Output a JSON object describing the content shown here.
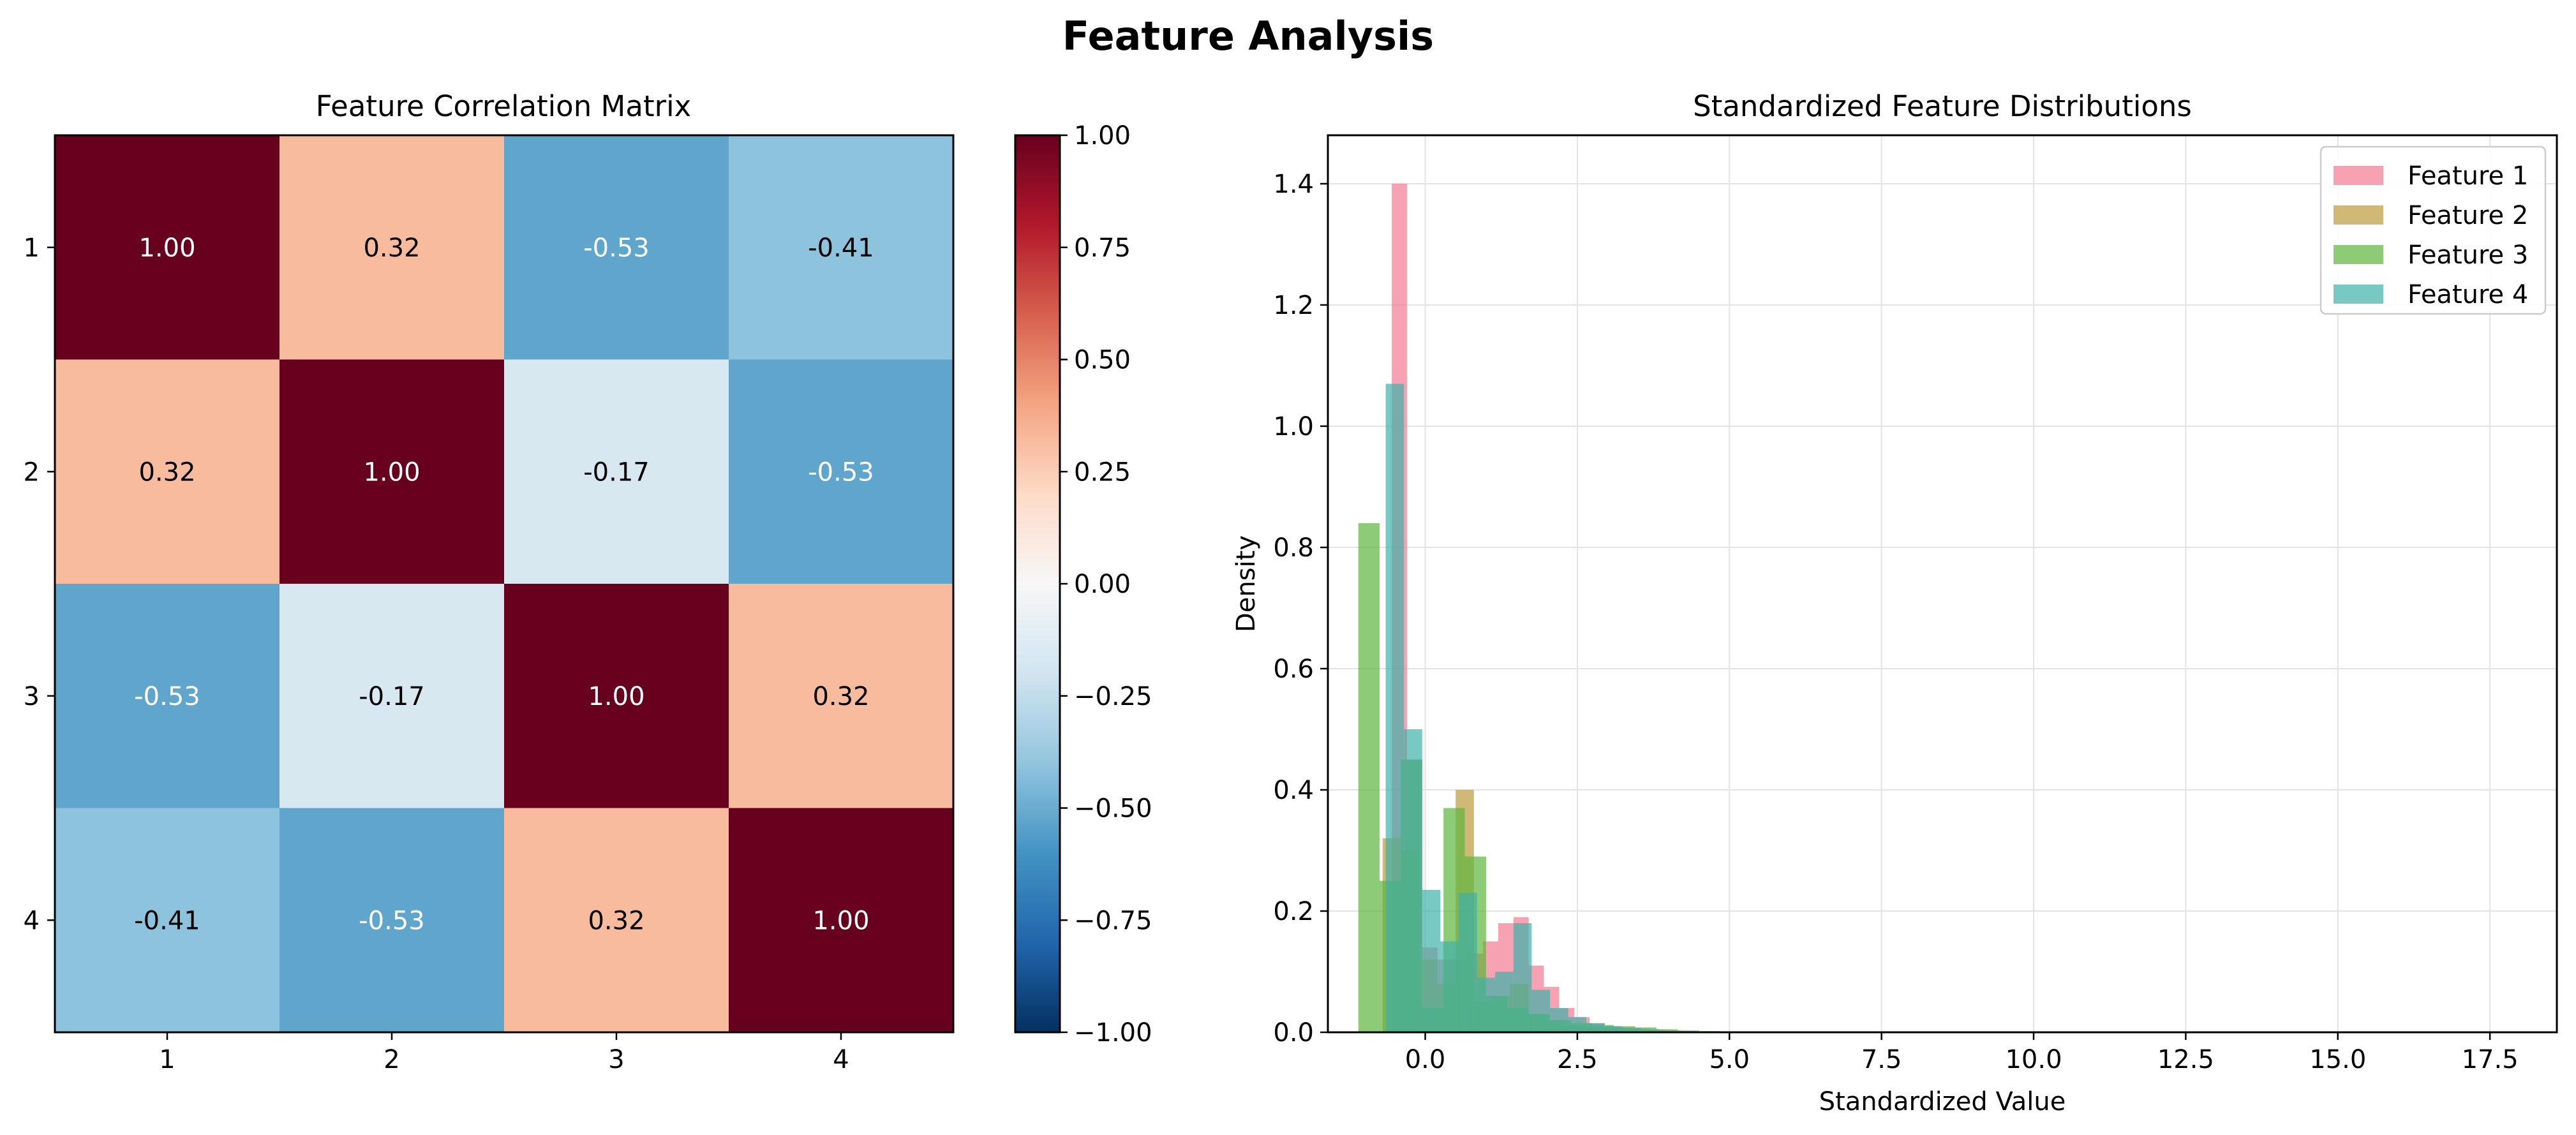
{
  "figure": {
    "title": "Feature Analysis"
  },
  "colors": {
    "feature_1": "#f37b91",
    "feature_2": "#bc9a3d",
    "feature_3": "#5db53c",
    "feature_4": "#3fb1a9",
    "cmap_neg": "#053061",
    "cmap_pos": "#67001f"
  },
  "chart_data": [
    {
      "type": "heatmap",
      "title": "Feature Correlation Matrix",
      "x_tick_labels": [
        "1",
        "2",
        "3",
        "4"
      ],
      "y_tick_labels": [
        "1",
        "2",
        "3",
        "4"
      ],
      "matrix": [
        [
          1.0,
          0.32,
          -0.53,
          -0.41
        ],
        [
          0.32,
          1.0,
          -0.17,
          -0.53
        ],
        [
          -0.53,
          -0.17,
          1.0,
          0.32
        ],
        [
          -0.41,
          -0.53,
          0.32,
          1.0
        ]
      ],
      "cell_labels": [
        [
          "1.00",
          "0.32",
          "-0.53",
          "-0.41"
        ],
        [
          "0.32",
          "1.00",
          "-0.17",
          "-0.53"
        ],
        [
          "-0.53",
          "-0.17",
          "1.00",
          "0.32"
        ],
        [
          "-0.41",
          "-0.53",
          "0.32",
          "1.00"
        ]
      ],
      "colormap": "RdBu_r",
      "vmin": -1,
      "vmax": 1,
      "colorbar_ticks": [
        1.0,
        0.75,
        0.5,
        0.25,
        0.0,
        -0.25,
        -0.5,
        -0.75,
        -1.0
      ],
      "colorbar_tick_labels": [
        "1.00",
        "0.75",
        "0.50",
        "0.25",
        "0.00",
        "−0.25",
        "−0.50",
        "−0.75",
        "−1.00"
      ]
    },
    {
      "type": "bar",
      "subtype": "histogram",
      "title": "Standardized Feature Distributions",
      "xlabel": "Standardized Value",
      "ylabel": "Density",
      "xlim": [
        -1.6,
        18.6
      ],
      "ylim": [
        0,
        1.48
      ],
      "x_ticks": [
        0,
        2.5,
        5,
        7.5,
        10,
        12.5,
        15,
        17.5
      ],
      "x_tick_labels": [
        "0.0",
        "2.5",
        "5.0",
        "7.5",
        "10.0",
        "12.5",
        "15.0",
        "17.5"
      ],
      "y_ticks": [
        0,
        0.2,
        0.4,
        0.6,
        0.8,
        1.0,
        1.2,
        1.4
      ],
      "y_tick_labels": [
        "0.0",
        "0.2",
        "0.4",
        "0.6",
        "0.8",
        "1.0",
        "1.2",
        "1.4"
      ],
      "grid": true,
      "legend_position": "top-right",
      "series": [
        {
          "name": "Feature 1",
          "color_key": "feature_1",
          "bin_edges": [
            -0.55,
            -0.3,
            -0.05,
            0.2,
            0.45,
            0.7,
            0.95,
            1.2,
            1.45,
            1.7,
            1.95,
            2.2,
            2.45,
            2.7,
            2.95,
            3.2,
            3.45,
            3.7,
            3.95,
            4.2,
            4.45,
            4.7,
            4.95,
            5.2
          ],
          "values": [
            1.4,
            0.45,
            0.14,
            0.12,
            0.12,
            0.13,
            0.15,
            0.18,
            0.19,
            0.11,
            0.075,
            0.04,
            0.025,
            0.015,
            0.01,
            0.008,
            0.006,
            0.004,
            0.003,
            0.002,
            0.0015,
            0.001,
            0.0005
          ]
        },
        {
          "name": "Feature 2",
          "color_key": "feature_2",
          "bin_edges": [
            -0.7,
            -0.4,
            -0.1,
            0.2,
            0.5,
            0.8,
            1.1,
            1.4,
            1.7,
            2.0,
            2.3,
            2.6,
            2.9,
            3.2,
            3.5,
            3.8,
            4.1,
            4.4,
            4.7,
            5.0
          ],
          "values": [
            0.32,
            0.3,
            0.12,
            0.08,
            0.4,
            0.05,
            0.06,
            0.08,
            0.03,
            0.02,
            0.012,
            0.008,
            0.006,
            0.004,
            0.003,
            0.002,
            0.001,
            0.0008,
            0.0005
          ]
        },
        {
          "name": "Feature 3",
          "color_key": "feature_3",
          "bin_edges": [
            -1.1,
            -0.75,
            -0.4,
            -0.05,
            0.3,
            0.65,
            1.0,
            1.35,
            1.7,
            2.05,
            2.4,
            2.75,
            3.1,
            3.45,
            3.8,
            4.15,
            4.5,
            4.85,
            5.2
          ],
          "values": [
            0.84,
            0.25,
            0.45,
            0.04,
            0.37,
            0.29,
            0.06,
            0.04,
            0.03,
            0.02,
            0.015,
            0.012,
            0.01,
            0.008,
            0.005,
            0.003,
            0.002,
            0.001
          ]
        },
        {
          "name": "Feature 4",
          "color_key": "feature_4",
          "bin_edges": [
            -0.65,
            -0.35,
            -0.05,
            0.25,
            0.55,
            0.85,
            1.15,
            1.45,
            1.75,
            2.05,
            2.35,
            2.65,
            2.95,
            3.25,
            3.55,
            3.85,
            4.15,
            4.45,
            4.75,
            5.05
          ],
          "values": [
            1.07,
            0.5,
            0.235,
            0.15,
            0.23,
            0.09,
            0.1,
            0.18,
            0.07,
            0.04,
            0.025,
            0.015,
            0.01,
            0.007,
            0.005,
            0.003,
            0.002,
            0.001,
            0.0005
          ]
        }
      ]
    }
  ]
}
